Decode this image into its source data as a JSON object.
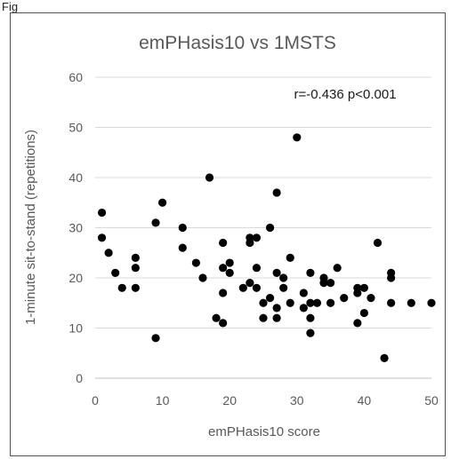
{
  "figure_label": "Fig",
  "chart_data": {
    "type": "scatter",
    "title": "emPHasis10 vs 1MSTS",
    "xlabel": "emPHasis10 score",
    "ylabel": "1-minute sit-to-stand (repetitions)",
    "xlim": [
      0,
      50
    ],
    "ylim": [
      0,
      60
    ],
    "xticks": [
      0,
      10,
      20,
      30,
      40,
      50
    ],
    "yticks": [
      0,
      10,
      20,
      30,
      40,
      50,
      60
    ],
    "grid": "horizontal",
    "annotation": "r=-0.436 p<0.001",
    "marker_color": "#000000",
    "points": [
      [
        1,
        33
      ],
      [
        1,
        28
      ],
      [
        2,
        25
      ],
      [
        3,
        21
      ],
      [
        4,
        18
      ],
      [
        6,
        24
      ],
      [
        6,
        22
      ],
      [
        6,
        18
      ],
      [
        9,
        31
      ],
      [
        9,
        8
      ],
      [
        10,
        35
      ],
      [
        13,
        30
      ],
      [
        13,
        26
      ],
      [
        15,
        23
      ],
      [
        16,
        20
      ],
      [
        17,
        40
      ],
      [
        18,
        12
      ],
      [
        19,
        27
      ],
      [
        19,
        22
      ],
      [
        19,
        17
      ],
      [
        19,
        11
      ],
      [
        20,
        23
      ],
      [
        20,
        21
      ],
      [
        22,
        18
      ],
      [
        23,
        28
      ],
      [
        23,
        27
      ],
      [
        23,
        19
      ],
      [
        24,
        28
      ],
      [
        24,
        22
      ],
      [
        24,
        18
      ],
      [
        25,
        15
      ],
      [
        25,
        12
      ],
      [
        26,
        30
      ],
      [
        26,
        16
      ],
      [
        27,
        37
      ],
      [
        27,
        21
      ],
      [
        27,
        14
      ],
      [
        27,
        12
      ],
      [
        28,
        20
      ],
      [
        28,
        18
      ],
      [
        29,
        24
      ],
      [
        29,
        15
      ],
      [
        30,
        48
      ],
      [
        31,
        17
      ],
      [
        31,
        14
      ],
      [
        32,
        21
      ],
      [
        32,
        15
      ],
      [
        32,
        12
      ],
      [
        32,
        9
      ],
      [
        33,
        15
      ],
      [
        34,
        20
      ],
      [
        34,
        19
      ],
      [
        35,
        19
      ],
      [
        35,
        15
      ],
      [
        36,
        22
      ],
      [
        37,
        16
      ],
      [
        39,
        18
      ],
      [
        39,
        17
      ],
      [
        39,
        11
      ],
      [
        40,
        18
      ],
      [
        40,
        13
      ],
      [
        41,
        16
      ],
      [
        42,
        27
      ],
      [
        43,
        4
      ],
      [
        44,
        21
      ],
      [
        44,
        20
      ],
      [
        44,
        15
      ],
      [
        47,
        15
      ],
      [
        50,
        15
      ]
    ]
  }
}
